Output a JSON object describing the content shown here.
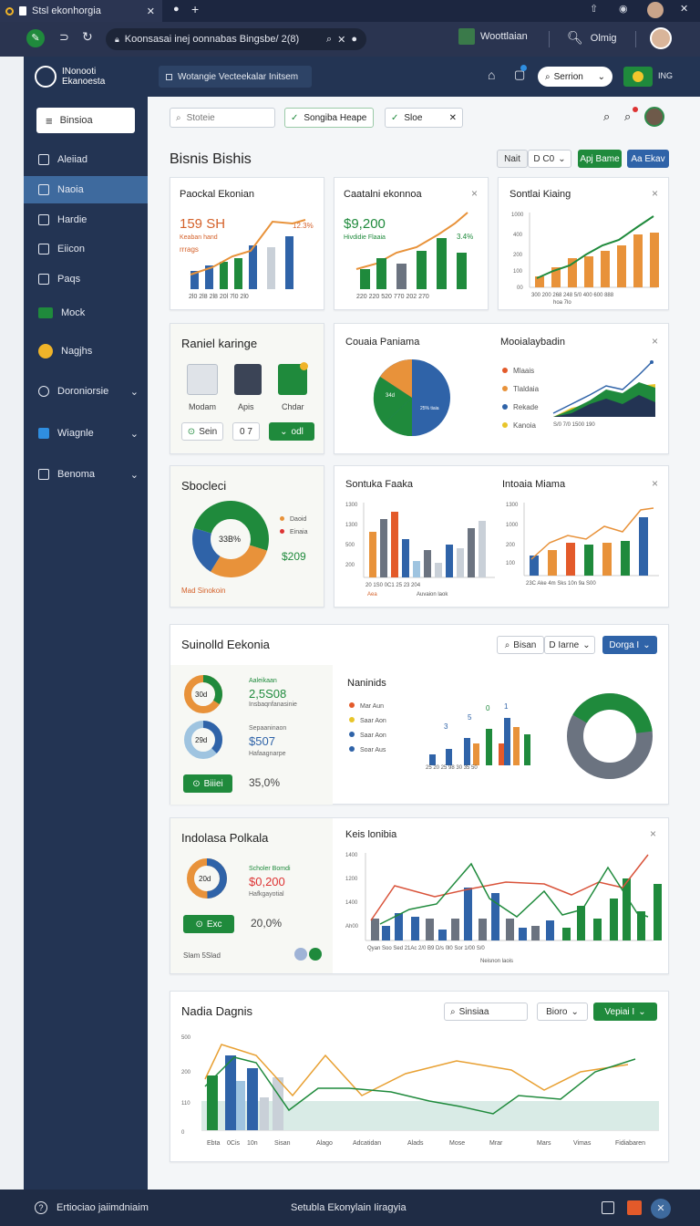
{
  "browser": {
    "tab_title": "Stsl ekonhorgia",
    "url": "Koonsasai inej oonnabas Bingsbe/ 2(8)",
    "profile_label": "Woottlaian",
    "account_label": "Olmig"
  },
  "app": {
    "logo_line1": "INonooti",
    "logo_line2": "Ekanoesta",
    "header_path": "Wotangie Vecteekalar Initsem",
    "header_dropdown": "Serrion",
    "header_badge": "ING"
  },
  "sidebar": {
    "menu_button": "Binsioa",
    "items": [
      {
        "label": "Aleiiad",
        "icon": "home-icon"
      },
      {
        "label": "Naoia",
        "icon": "table-icon"
      },
      {
        "label": "Hardie",
        "icon": "person-icon"
      },
      {
        "label": "Eiicon",
        "icon": "monitor-icon"
      },
      {
        "label": "Paqs",
        "icon": "cart-icon"
      },
      {
        "label": "Mock",
        "icon": "card-icon"
      },
      {
        "label": "Nagjhs",
        "icon": "cloud-icon"
      },
      {
        "label": "Doroniorsie",
        "icon": "gauge-icon"
      },
      {
        "label": "Wiagnle",
        "icon": "chart-icon"
      },
      {
        "label": "Benoma",
        "icon": "grid-icon"
      }
    ]
  },
  "toolbar": {
    "search_placeholder": "Stoteie",
    "filter1": "Songiba Heape",
    "filter2": "Sloe"
  },
  "section1": {
    "title": "Bisnis Bishis",
    "btn_nait": "Nait",
    "btn_dco": "D C0",
    "btn_green": "Apj Bame",
    "btn_blue": "Aa Ekav",
    "card1": {
      "title": "Paockal Ekonian",
      "value": "159 SH",
      "sub1": "Keaban hand",
      "sub2": "rrrags",
      "badge": "12.3%"
    },
    "card2": {
      "title": "Caatalni ekonnoa",
      "value": "$9,200",
      "sub": "Hivdidie Flaaia",
      "badge": "3.4%"
    },
    "card3": {
      "title": "Sontlai Kiaing"
    }
  },
  "section2": {
    "card1": {
      "title": "Raniel karinge",
      "icons": [
        "Modam",
        "Apis",
        "Chdar"
      ],
      "btn_scan": "Sein",
      "btn_num": "0 7",
      "btn_add": "odl"
    },
    "card2": {
      "title": "Couaia Paniama",
      "pie_label1": "34d",
      "pie_label2": "25% tiaia"
    },
    "card3": {
      "title": "Mooialaybadin",
      "legend": [
        "Mlaais",
        "Tlaldaia",
        "Rekade",
        "Kanoia"
      ]
    }
  },
  "section3": {
    "card1": {
      "title": "Sbocleci",
      "center": "33B%",
      "legend": [
        "Daoid",
        "Einaia"
      ],
      "value": "$209",
      "link": "Mad Sinokoin"
    },
    "card2": {
      "title": "Sontuka Faaka",
      "xlabel": "Aea",
      "xlabel2": "Auvaion laok"
    },
    "card3": {
      "title": "Intoaia Miama"
    }
  },
  "section4": {
    "title": "Suinolld Eekonia",
    "search": "Bisan",
    "dropdown": "D Iarne",
    "dropdown2": "Dorga I",
    "stat1": {
      "label": "Aaleikaan",
      "value": "2,5S08",
      "sub": "Insbaqnfanasinie",
      "pct": "30d"
    },
    "stat2": {
      "label": "Sepaaninaon",
      "value": "$507",
      "sub": "Hafaagnarpe",
      "pct": "29d"
    },
    "btn": "Biiiei",
    "percent": "35,0%",
    "chart_title": "Naninids",
    "legend": [
      "Mar Aun",
      "Saar Aon",
      "Saar Aon",
      "Soar Aus"
    ],
    "bar_labels": [
      "3",
      "5",
      "0",
      "1"
    ]
  },
  "section5": {
    "title": "Indolasa Polkala",
    "stat_label": "Scholer Bomdi",
    "value": "$0,200",
    "sub": "Hafkgayotial",
    "pct": "20d",
    "btn": "Exc",
    "percent": "20,0%",
    "foot": "Slam 5Slad",
    "chart_title": "Keis lonibia",
    "xlabel": "Neisnon laois"
  },
  "section6": {
    "title": "Nadia Dagnis",
    "search": "Sinsiaa",
    "btn": "Bioro",
    "btn2": "Vepiai I",
    "xlabels": [
      "Ebta",
      "0Cis",
      "10n",
      "Sisan",
      "Alago",
      "Adcatidan",
      "Alads",
      "Mose",
      "Mrar",
      "Mars",
      "Vimas",
      "Fidiabaren"
    ],
    "ylabels": [
      "500",
      "200",
      "110",
      "0"
    ]
  },
  "footer": {
    "left": "Ertiociao jaiimdniaim",
    "center": "Setubla Ekonylain Iiragyia"
  },
  "colors": {
    "green": "#1f8a3c",
    "blue": "#2f63a8",
    "orange": "#e8923a",
    "gray": "#8f98a6",
    "navy": "#233453"
  }
}
